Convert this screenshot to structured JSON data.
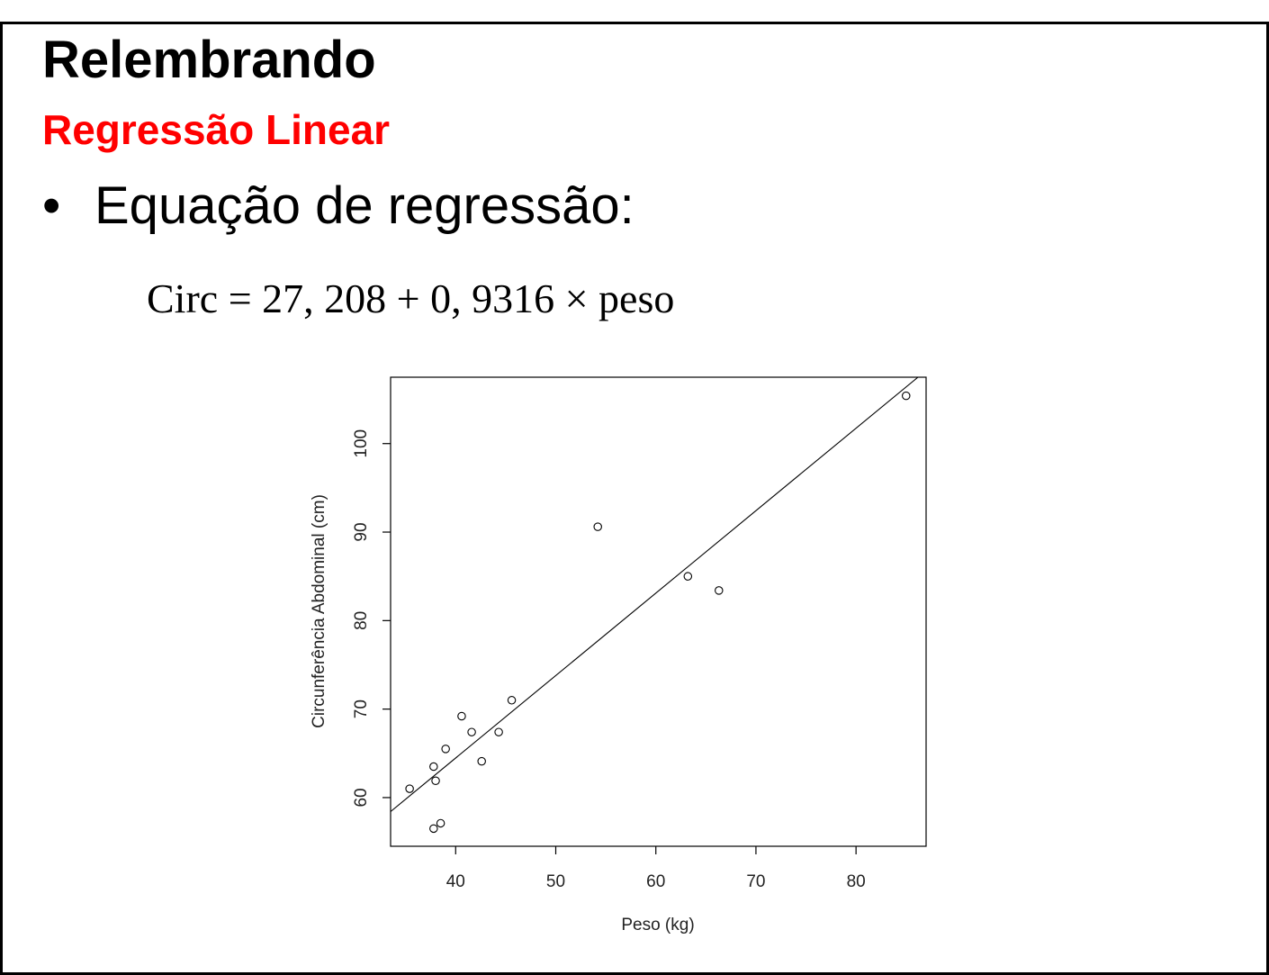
{
  "slide": {
    "title": "Relembrando",
    "subtitle": "Regressão Linear",
    "subtitle_color": "#ff0000",
    "bullet_glyph": "•",
    "bullet_text": "Equação de regressão:",
    "equation": "Circ = 27, 208 + 0, 9316 × peso"
  },
  "chart_data": {
    "type": "scatter",
    "xlabel": "Peso (kg)",
    "ylabel": "Circunferência Abdominal (cm)",
    "xlim": [
      33.5,
      87
    ],
    "ylim": [
      54.5,
      107.5
    ],
    "xticks": [
      40,
      50,
      60,
      70,
      80
    ],
    "yticks": [
      60,
      70,
      80,
      90,
      100
    ],
    "grid": false,
    "points": [
      {
        "x": 35.4,
        "y": 61.0
      },
      {
        "x": 37.8,
        "y": 63.5
      },
      {
        "x": 38.0,
        "y": 61.9
      },
      {
        "x": 37.8,
        "y": 56.5
      },
      {
        "x": 38.5,
        "y": 57.1
      },
      {
        "x": 39.0,
        "y": 65.5
      },
      {
        "x": 40.6,
        "y": 69.2
      },
      {
        "x": 41.6,
        "y": 67.4
      },
      {
        "x": 42.6,
        "y": 64.1
      },
      {
        "x": 44.3,
        "y": 67.4
      },
      {
        "x": 45.6,
        "y": 71.0
      },
      {
        "x": 54.2,
        "y": 90.6
      },
      {
        "x": 63.2,
        "y": 85.0
      },
      {
        "x": 66.3,
        "y": 83.4
      },
      {
        "x": 85.0,
        "y": 105.4
      }
    ],
    "regression": {
      "intercept": 27.208,
      "slope": 0.9316
    }
  }
}
